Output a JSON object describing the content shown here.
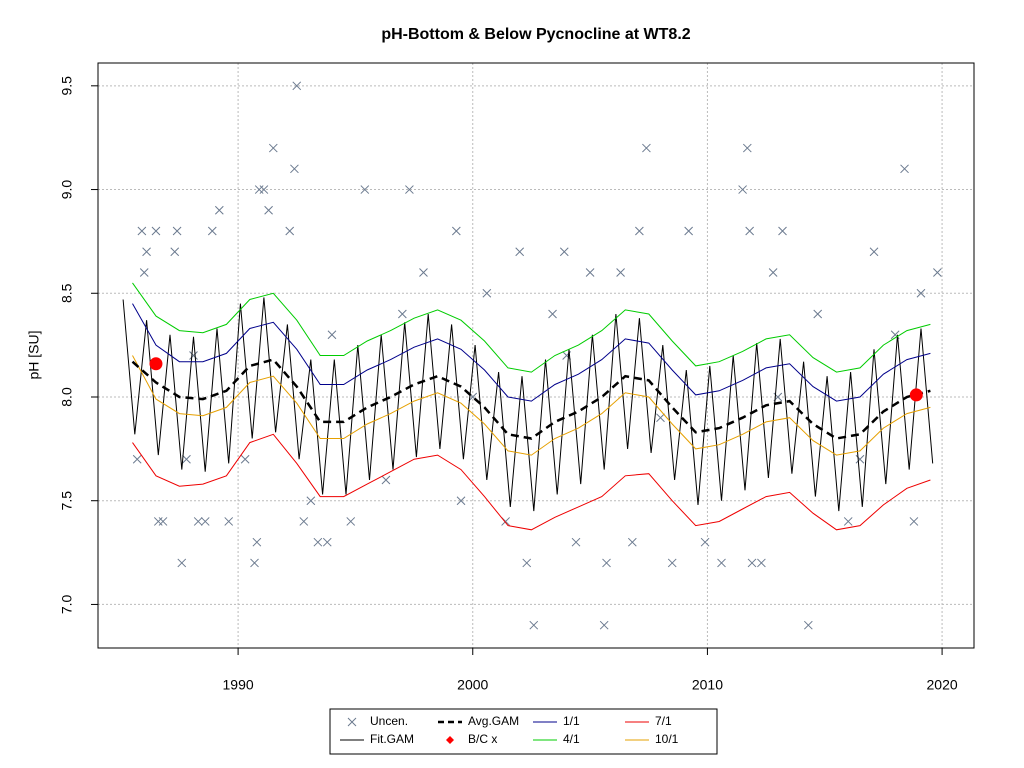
{
  "chart_data": {
    "type": "line",
    "title": "pH-Bottom & Below Pycnocline at WT8.2",
    "y_label": "pH [SU]",
    "xlim": [
      1984.03,
      2021.36
    ],
    "ylim": [
      6.79,
      9.61
    ],
    "xticks": [
      1990,
      2000,
      2010,
      2020
    ],
    "yticks": [
      {
        "value": 7,
        "label": "7.0"
      },
      {
        "value": 7.5,
        "label": "7.5"
      },
      {
        "value": 8,
        "label": "8.0"
      },
      {
        "value": 8.5,
        "label": "8.5"
      },
      {
        "value": 9,
        "label": "9.0"
      },
      {
        "value": 9.5,
        "label": "9.5"
      }
    ],
    "grid": true,
    "legend": "bottom",
    "x": [
      1985.5,
      1986.5,
      1987.5,
      1988.5,
      1989.5,
      1990.5,
      1991.5,
      1992.5,
      1993.5,
      1994.5,
      1995.5,
      1996.5,
      1997.5,
      1998.5,
      1999.5,
      2000.5,
      2001.5,
      2002.5,
      2003.5,
      2004.5,
      2005.5,
      2006.5,
      2007.5,
      2008.5,
      2009.5,
      2010.5,
      2011.5,
      2012.5,
      2013.5,
      2014.5,
      2015.5,
      2016.5,
      2017.5,
      2018.5,
      2019.5
    ],
    "series": [
      {
        "name": "Uncen.",
        "color": "#6b7a8f",
        "marker": "x",
        "x": [
          1985.7,
          1985.9,
          1986.0,
          1986.1,
          1986.5,
          1986.6,
          1986.8,
          1987.3,
          1987.4,
          1987.6,
          1987.8,
          1988.3,
          1988.6,
          1988.9,
          1989.2,
          1989.6,
          1990.3,
          1990.7,
          1990.8,
          1990.9,
          1991.1,
          1991.3,
          1991.5,
          1992.2,
          1992.4,
          1992.5,
          1992.8,
          1993.1,
          1993.4,
          1993.8,
          1994.8,
          1995.4,
          1996.3,
          1997.3,
          1997.9,
          1999.3,
          1999.5,
          2000.6,
          2001.4,
          2002.0,
          2002.3,
          2002.6,
          2003.4,
          2003.9,
          2004.4,
          2005.0,
          2005.7,
          2005.6,
          2006.3,
          2006.8,
          2007.1,
          2007.4,
          2008.5,
          2009.2,
          2009.9,
          2010.6,
          2011.5,
          2011.7,
          2011.8,
          2011.9,
          2012.3,
          2012.8,
          2013.2,
          2014.3,
          2014.7,
          2016.0,
          2017.1,
          2018.4,
          2018.8,
          2019.1,
          2019.8,
          1988.1,
          1994.0,
          1997.0,
          2000.0,
          2004.0,
          2008.0,
          2013.0,
          2016.5,
          2018.0
        ],
        "values": [
          7.7,
          8.8,
          8.6,
          8.7,
          8.8,
          7.4,
          7.4,
          8.7,
          8.8,
          7.2,
          7.7,
          7.4,
          7.4,
          8.8,
          8.9,
          7.4,
          7.7,
          7.2,
          7.3,
          9.0,
          9.0,
          8.9,
          9.2,
          8.8,
          9.1,
          9.5,
          7.4,
          7.5,
          7.3,
          7.3,
          7.4,
          9.0,
          7.6,
          9.0,
          8.6,
          8.8,
          7.5,
          8.5,
          7.4,
          8.7,
          7.2,
          6.9,
          8.4,
          8.7,
          7.3,
          8.6,
          7.2,
          6.9,
          8.6,
          7.3,
          8.8,
          9.2,
          7.2,
          8.8,
          7.3,
          7.2,
          9.0,
          9.2,
          8.8,
          7.2,
          7.2,
          8.6,
          8.8,
          6.9,
          8.4,
          7.4,
          8.7,
          9.1,
          7.4,
          8.5,
          8.6,
          8.2,
          8.3,
          8.4,
          8.0,
          8.2,
          7.9,
          8.0,
          7.7,
          8.3
        ]
      },
      {
        "name": "Fit.GAM",
        "color": "#000000",
        "marker": "line",
        "x": [
          1985.1,
          1985.6,
          1986.1,
          1986.6,
          1987.1,
          1987.6,
          1988.1,
          1988.6,
          1989.1,
          1989.6,
          1990.1,
          1990.6,
          1991.1,
          1991.6,
          1992.1,
          1992.6,
          1993.1,
          1993.6,
          1994.1,
          1994.6,
          1995.1,
          1995.6,
          1996.1,
          1996.6,
          1997.1,
          1997.6,
          1998.1,
          1998.6,
          1999.1,
          1999.6,
          2000.1,
          2000.6,
          2001.1,
          2001.6,
          2002.1,
          2002.6,
          2003.1,
          2003.6,
          2004.1,
          2004.6,
          2005.1,
          2005.6,
          2006.1,
          2006.6,
          2007.1,
          2007.6,
          2008.1,
          2008.6,
          2009.1,
          2009.6,
          2010.1,
          2010.6,
          2011.1,
          2011.6,
          2012.1,
          2012.6,
          2013.1,
          2013.6,
          2014.1,
          2014.6,
          2015.1,
          2015.6,
          2016.1,
          2016.6,
          2017.1,
          2017.6,
          2018.1,
          2018.6,
          2019.1,
          2019.6
        ],
        "values": [
          8.47,
          7.82,
          8.37,
          7.72,
          8.3,
          7.65,
          8.29,
          7.64,
          8.33,
          7.68,
          8.45,
          7.8,
          8.48,
          7.83,
          8.35,
          7.7,
          8.18,
          7.53,
          8.18,
          7.53,
          8.25,
          7.6,
          8.3,
          7.65,
          8.36,
          7.71,
          8.4,
          7.75,
          8.35,
          7.7,
          8.25,
          7.6,
          8.12,
          7.47,
          8.1,
          7.45,
          8.18,
          7.53,
          8.23,
          7.58,
          8.3,
          7.65,
          8.4,
          7.75,
          8.38,
          7.73,
          8.25,
          7.6,
          8.13,
          7.48,
          8.15,
          7.5,
          8.2,
          7.55,
          8.26,
          7.61,
          8.28,
          7.63,
          8.17,
          7.52,
          8.1,
          7.45,
          8.12,
          7.47,
          8.23,
          7.58,
          8.3,
          7.65,
          8.33,
          7.68
        ]
      },
      {
        "name": "Avg.GAM",
        "color": "#000000",
        "marker": "dashed-line",
        "values": [
          8.17,
          8.07,
          8.0,
          7.99,
          8.03,
          8.15,
          8.18,
          8.05,
          7.88,
          7.88,
          7.95,
          8.0,
          8.06,
          8.1,
          8.05,
          7.95,
          7.82,
          7.8,
          7.88,
          7.93,
          8.0,
          8.1,
          8.08,
          7.95,
          7.83,
          7.85,
          7.9,
          7.96,
          7.98,
          7.87,
          7.8,
          7.82,
          7.93,
          8.0,
          8.03
        ]
      },
      {
        "name": "B/C x",
        "color": "#ff0000",
        "marker": "circle",
        "x": [
          1986.5,
          2018.9
        ],
        "values": [
          8.16,
          8.01
        ]
      },
      {
        "name": "1/1",
        "color": "#00008b",
        "marker": "line",
        "values": [
          8.45,
          8.25,
          8.17,
          8.17,
          8.21,
          8.33,
          8.36,
          8.23,
          8.06,
          8.06,
          8.13,
          8.18,
          8.24,
          8.28,
          8.23,
          8.13,
          8.0,
          7.98,
          8.06,
          8.11,
          8.18,
          8.28,
          8.26,
          8.13,
          8.01,
          8.03,
          8.08,
          8.14,
          8.16,
          8.05,
          7.98,
          8.0,
          8.11,
          8.18,
          8.21
        ]
      },
      {
        "name": "4/1",
        "color": "#00cc00",
        "marker": "line",
        "values": [
          8.55,
          8.39,
          8.32,
          8.31,
          8.35,
          8.47,
          8.5,
          8.37,
          8.2,
          8.2,
          8.27,
          8.32,
          8.38,
          8.42,
          8.37,
          8.27,
          8.14,
          8.12,
          8.2,
          8.25,
          8.32,
          8.42,
          8.4,
          8.27,
          8.15,
          8.17,
          8.22,
          8.28,
          8.3,
          8.19,
          8.12,
          8.14,
          8.25,
          8.32,
          8.35
        ]
      },
      {
        "name": "7/1",
        "color": "#ee0000",
        "marker": "line",
        "values": [
          7.78,
          7.62,
          7.57,
          7.58,
          7.62,
          7.78,
          7.82,
          7.68,
          7.52,
          7.52,
          7.58,
          7.64,
          7.7,
          7.72,
          7.65,
          7.52,
          7.38,
          7.36,
          7.42,
          7.47,
          7.52,
          7.62,
          7.63,
          7.5,
          7.38,
          7.4,
          7.46,
          7.52,
          7.54,
          7.44,
          7.36,
          7.38,
          7.48,
          7.56,
          7.6
        ]
      },
      {
        "name": "10/1",
        "color": "#e6a000",
        "marker": "line",
        "values": [
          8.2,
          7.99,
          7.92,
          7.91,
          7.95,
          8.07,
          8.1,
          7.97,
          7.8,
          7.8,
          7.87,
          7.92,
          7.98,
          8.02,
          7.97,
          7.87,
          7.74,
          7.72,
          7.8,
          7.85,
          7.92,
          8.02,
          8.0,
          7.87,
          7.75,
          7.77,
          7.82,
          7.88,
          7.9,
          7.79,
          7.72,
          7.74,
          7.85,
          7.92,
          7.95
        ]
      }
    ]
  }
}
